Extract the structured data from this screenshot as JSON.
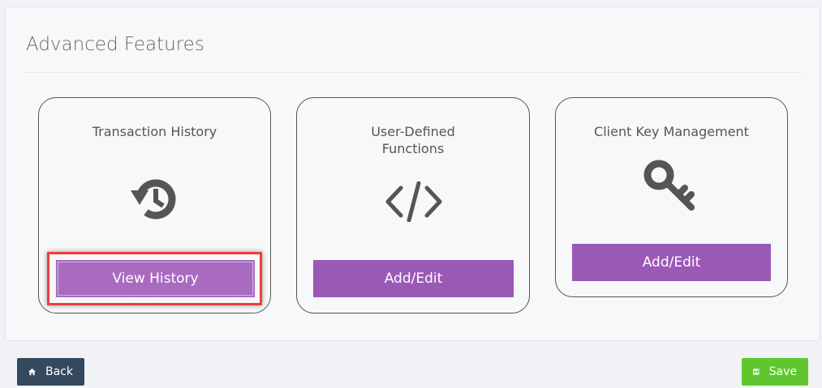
{
  "section": {
    "title": "Advanced Features"
  },
  "cards": [
    {
      "title": "Transaction History",
      "icon": "history-icon",
      "button": "View History",
      "focused": true
    },
    {
      "title_line1": "User-Defined",
      "title_line2": "Functions",
      "icon": "code-icon",
      "button": "Add/Edit"
    },
    {
      "title": "Client Key Management",
      "icon": "key-icon",
      "button": "Add/Edit"
    }
  ],
  "footer": {
    "back": "Back",
    "back_icon": "home-icon",
    "save": "Save",
    "save_icon": "floppy-disk-icon"
  },
  "colors": {
    "accent": "#9b59b6",
    "back": "#34495e",
    "save": "#5fc72d",
    "focus_outline": "#f03c3c"
  }
}
